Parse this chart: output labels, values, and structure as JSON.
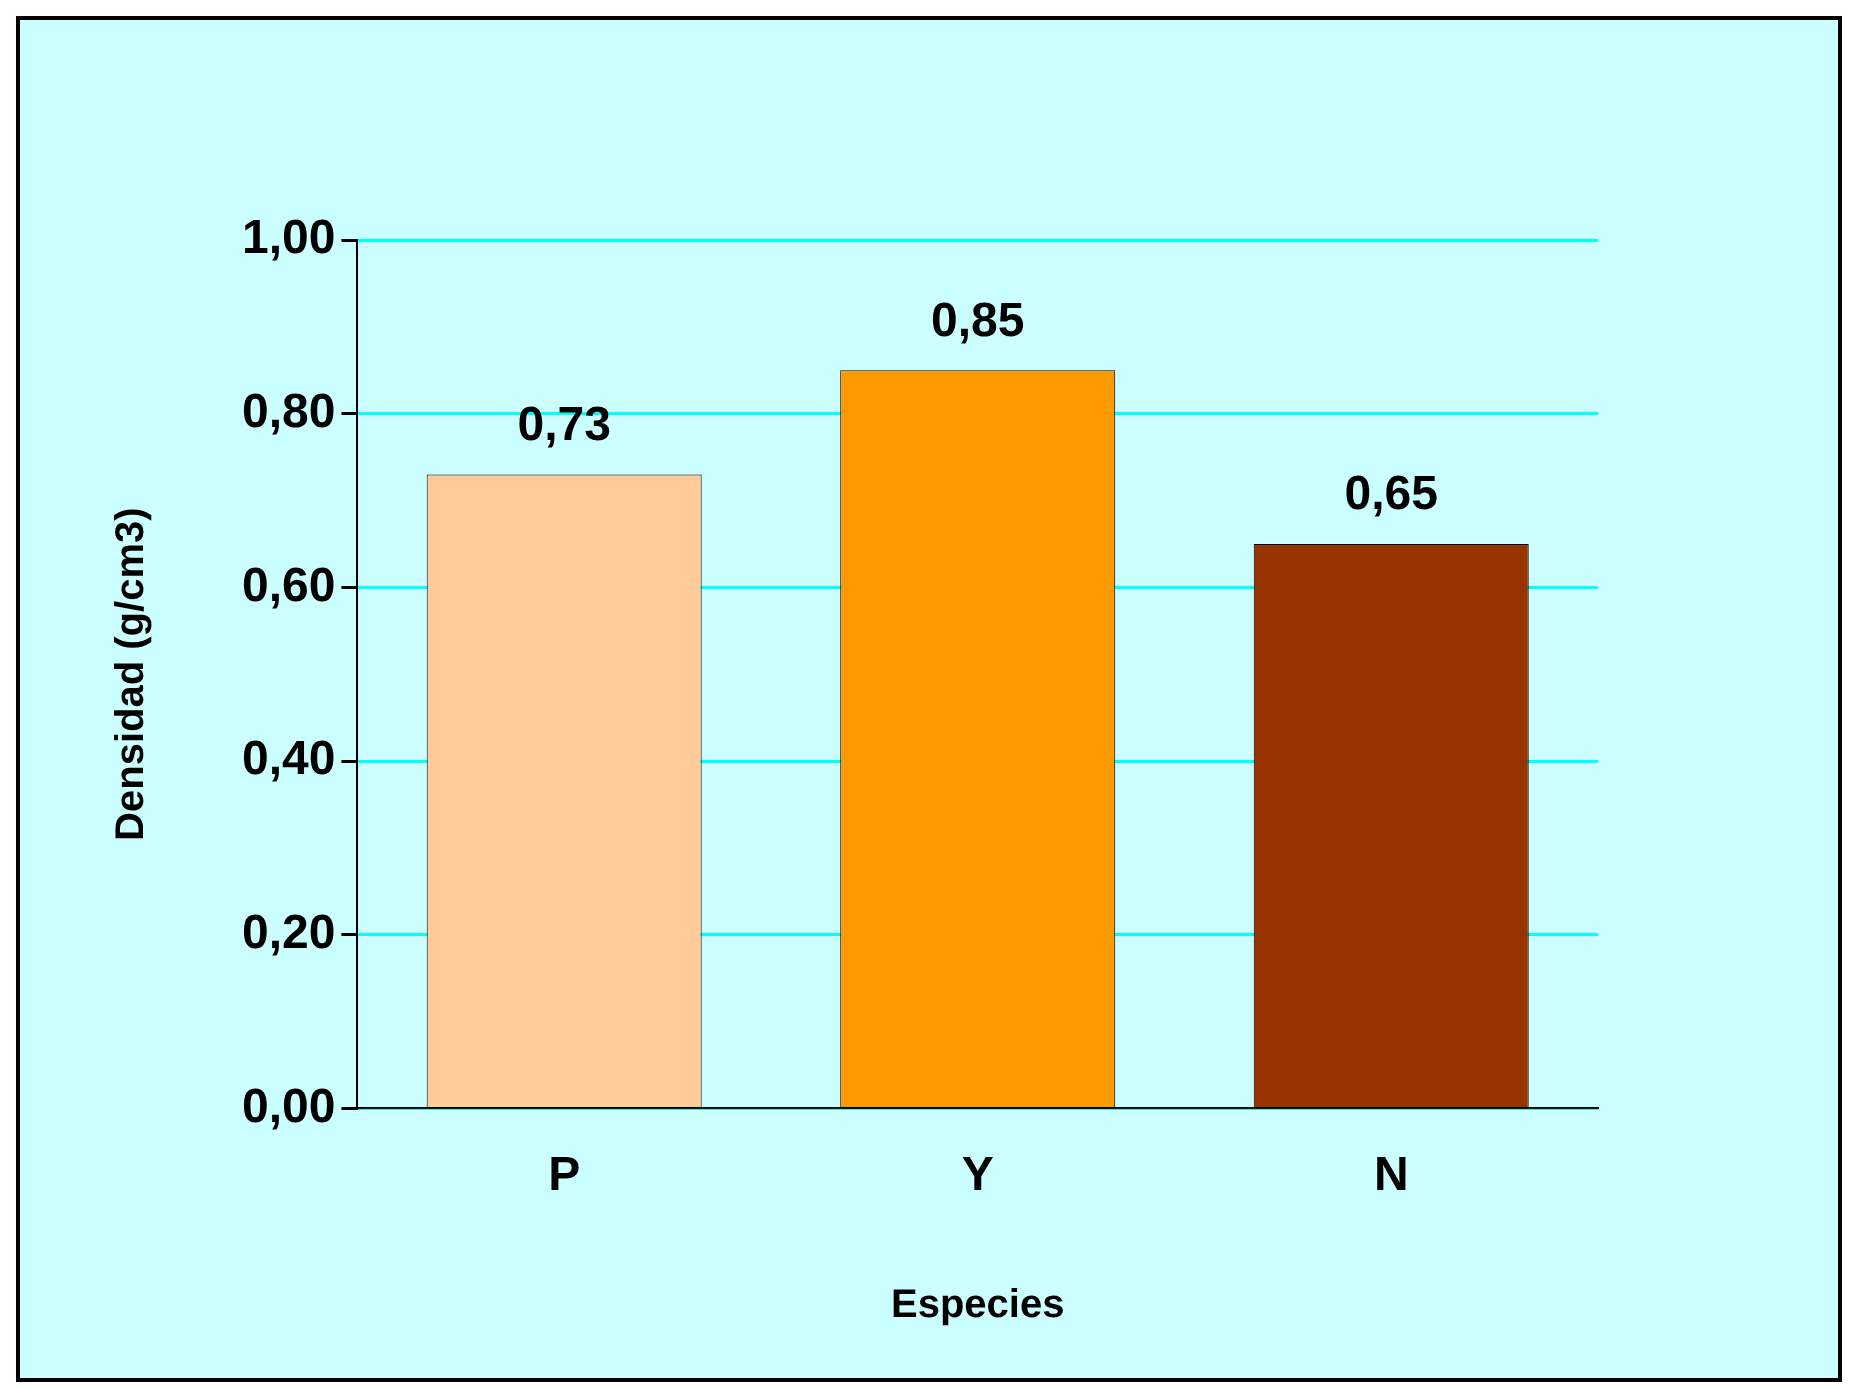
{
  "chart_data": {
    "type": "bar",
    "xlabel": "Especies",
    "ylabel": "Densidad (g/cm3)",
    "categories": [
      "P",
      "Y",
      "N"
    ],
    "values": [
      0.73,
      0.85,
      0.65
    ],
    "colors": [
      "#ffcc99",
      "#ff9900",
      "#993300"
    ],
    "value_labels": [
      "0,73",
      "0,85",
      "0,65"
    ],
    "ylim": [
      0,
      1
    ],
    "yticks": [
      {
        "value": 0,
        "label": "0,00"
      },
      {
        "value": 0.2,
        "label": "0,20"
      },
      {
        "value": 0.4,
        "label": "0,40"
      },
      {
        "value": 0.6,
        "label": "0,60"
      },
      {
        "value": 0.8,
        "label": "0,80"
      },
      {
        "value": 1,
        "label": "1,00"
      }
    ],
    "grid": "y",
    "legend": false
  }
}
